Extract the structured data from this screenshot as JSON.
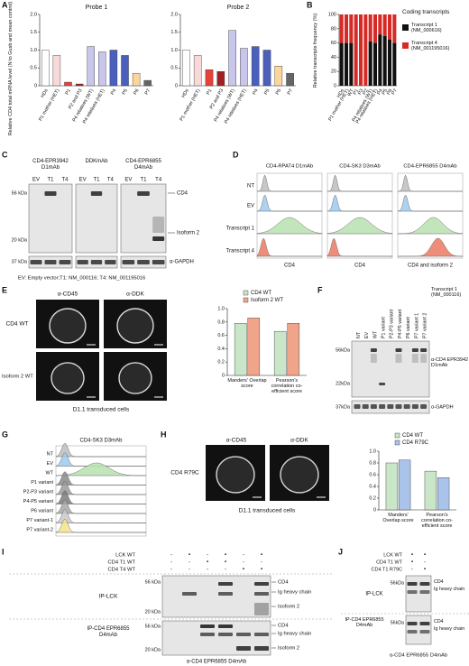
{
  "chart_data": [
    {
      "type": "bar",
      "title": "Probe 1",
      "ylabel": "Relative CD4 total mRNA level (N to Gusb and mean control)",
      "categories": [
        "HDs",
        "P1 mother (HET)",
        "P1",
        "P2 and P3",
        "P4 relatives (WT)",
        "P4 relatives (HET)",
        "P4",
        "P5",
        "P6",
        "P7"
      ],
      "values": [
        1.0,
        0.85,
        0.1,
        0.05,
        1.1,
        0.95,
        1.0,
        0.85,
        0.35,
        0.15
      ],
      "colors": [
        "#ffffff",
        "#f8d9d9",
        "#e8413a",
        "#a31e22",
        "#c8c6ea",
        "#c8c6ea",
        "#4b5fbd",
        "#4b5fbd",
        "#fbd59a",
        "#666666"
      ],
      "ylim": [
        0,
        2
      ],
      "yticks": [
        0,
        0.5,
        {
          "value": 1,
          "label": "1.0"
        },
        1.5,
        {
          "value": 2,
          "label": "2.0"
        }
      ]
    },
    {
      "type": "bar",
      "title": "Probe 2",
      "categories": [
        "HDs",
        "P1 mother (HET)",
        "P1",
        "P2 and P3",
        "P4 relatives (WT)",
        "P4 relatives (HET)",
        "P4",
        "P5",
        "P6",
        "P7"
      ],
      "values": [
        1.0,
        0.85,
        0.45,
        0.4,
        1.55,
        1.05,
        1.1,
        1.0,
        0.55,
        0.35
      ],
      "colors": [
        "#ffffff",
        "#f8d9d9",
        "#e8413a",
        "#a31e22",
        "#c8c6ea",
        "#c8c6ea",
        "#4b5fbd",
        "#4b5fbd",
        "#fbd59a",
        "#666666"
      ],
      "ylim": [
        0,
        2
      ],
      "yticks": [
        0,
        0.5,
        {
          "value": 1,
          "label": "1.0"
        },
        1.5,
        {
          "value": 2,
          "label": "2.0"
        }
      ]
    },
    {
      "type": "stacked",
      "ylabel": "Relative transcripts frequency (%)",
      "legend_title": "Coding transcripts",
      "categories": [
        "HDs",
        "P1 mother (HET)",
        "WT",
        "P1",
        "P3",
        "P2",
        "P4 relatives (WT)",
        "P4 relatives (HET)",
        "P4",
        "P5",
        "P6",
        "P7"
      ],
      "series": [
        {
          "name": "Transcript 1 (NM_000616)",
          "color": "#111111",
          "values": [
            60,
            60,
            60,
            0,
            0,
            0,
            62,
            60,
            72,
            70,
            65,
            60
          ]
        },
        {
          "name": "Transcript 4 (NM_001195016)",
          "color": "#d62a26",
          "values": [
            40,
            40,
            40,
            100,
            100,
            100,
            38,
            40,
            28,
            30,
            35,
            40
          ]
        }
      ],
      "ylim": [
        0,
        100
      ],
      "yticks": [
        0,
        20,
        40,
        60,
        80,
        100
      ]
    },
    {
      "type": "grouped",
      "categories": [
        "Manders' Overlap score",
        "Pearson's correlation co-efficient score"
      ],
      "series": [
        {
          "name": "CD4 WT",
          "color": "#c9e6c9",
          "values": [
            0.78,
            0.66
          ]
        },
        {
          "name": "Isoform 2 WT",
          "color": "#f0a58a",
          "values": [
            0.86,
            0.78
          ]
        }
      ],
      "ylim": [
        0,
        1
      ],
      "yticks": [
        0,
        0.2,
        0.4,
        0.6,
        0.8,
        {
          "value": 1,
          "label": "1.0"
        }
      ]
    },
    {
      "type": "grouped",
      "categories": [
        "Manders' Overlap score",
        "Pearson's correlation co-efficient score"
      ],
      "series": [
        {
          "name": "CD4 WT",
          "color": "#c9e6c9",
          "values": [
            0.8,
            0.66
          ]
        },
        {
          "name": "CD4 R79C",
          "color": "#a9c3ea",
          "values": [
            0.85,
            0.55
          ]
        }
      ],
      "ylim": [
        0,
        1
      ],
      "yticks": [
        0,
        0.2,
        0.4,
        0.6,
        0.8,
        {
          "value": 1,
          "label": "1.0"
        }
      ]
    }
  ],
  "panels": {
    "letters": [
      "A",
      "B",
      "C",
      "D",
      "E",
      "F",
      "G",
      "H",
      "I",
      "J"
    ],
    "C": {
      "antibodies": [
        "CD4-EPR3942 D1mAb",
        "DDKmAb",
        "CD4-EPR6855 D4mAb"
      ],
      "lanes": [
        "EV",
        "T1",
        "T4"
      ],
      "mw": [
        "56 kDa",
        "20 kDa",
        "37 kDa"
      ],
      "bands": [
        "CD4",
        "Isoform 2"
      ],
      "loading": "α-GAPDH",
      "footnote": "EV: Empty vector;T1: NM_000116; T4: NM_001195016"
    },
    "D": {
      "antibodies": [
        "CD4-RPAT4 D1mAb",
        "CD4-SK3 D3mAb",
        "CD4-EPR6855 D4mAb"
      ],
      "rows": [
        "NT",
        "EV",
        "Transcript 1",
        "Transcript 4"
      ],
      "xlabels": [
        "CD4",
        "CD4",
        "CD4 and isoform 2"
      ]
    },
    "E": {
      "stains": [
        "α-CD45",
        "α-DDK"
      ],
      "rows": [
        "CD4 WT",
        "Isoform 2 WT"
      ],
      "counts": [
        "63/119",
        "63/119",
        "70/119",
        "70/119"
      ],
      "caption": "D1.1 transduced cells"
    },
    "F": {
      "lanes": [
        "NT",
        "EV",
        "WT",
        "P1 variant",
        "P2-P3 variant",
        "P4-P5 variant",
        "P6 variant",
        "P7 variant 1",
        "P7 variant 2"
      ],
      "transcript": "Transcript 1 (NM_000116)",
      "mw": [
        "56kDa",
        "22kDa",
        "37kDa"
      ],
      "antibody": "α-CD4 EPR3942 D1mAb",
      "loading": "α-GAPDH"
    },
    "G": {
      "antibody": "CD4-SK3 D3mAb",
      "rows": [
        "NT",
        "EV",
        "WT",
        "P1 variant",
        "P2-P3 variant",
        "P4-P5 variant",
        "P6 variant",
        "P7 variant-1",
        "P7 variant-2"
      ]
    },
    "H": {
      "stains": [
        "α-CD45",
        "α-DDK"
      ],
      "row": "CD4 R79C",
      "counts": [
        "66/119",
        "66/119"
      ],
      "caption": "D1.1 transduced cells"
    },
    "I": {
      "constructs": [
        "LCK WT",
        "CD4 T1 WT",
        "CD4 T4 WT"
      ],
      "matrix": [
        [
          "-",
          "•",
          "-",
          "•",
          "-",
          "•"
        ],
        [
          "-",
          "-",
          "•",
          "•",
          "-",
          "-"
        ],
        [
          "-",
          "-",
          "-",
          "-",
          "•",
          "•"
        ]
      ],
      "ips": [
        "IP-LCK",
        "IP-CD4 EPR6855 D4mAb"
      ],
      "mw": [
        "56 kDa",
        "20 kDa"
      ],
      "bands": [
        "CD4",
        "Ig heavy chain",
        "Isoform 2"
      ],
      "blot": "α-CD4 EPR6855 D4mAb"
    },
    "J": {
      "constructs": [
        "LCK WT",
        "CD4 T1 WT",
        "CD4 T1 R79C"
      ],
      "matrix": [
        [
          "•",
          "•"
        ],
        [
          "•",
          "-"
        ],
        [
          "-",
          "•"
        ]
      ],
      "ips": [
        "IP-LCK",
        "IP-CD4 EPR6855 D4mAb"
      ],
      "mw": "56kDa",
      "bands": [
        "CD4",
        "Ig heavy chain"
      ],
      "blot": "α-CD4 EPR6855 D4mAb"
    }
  }
}
